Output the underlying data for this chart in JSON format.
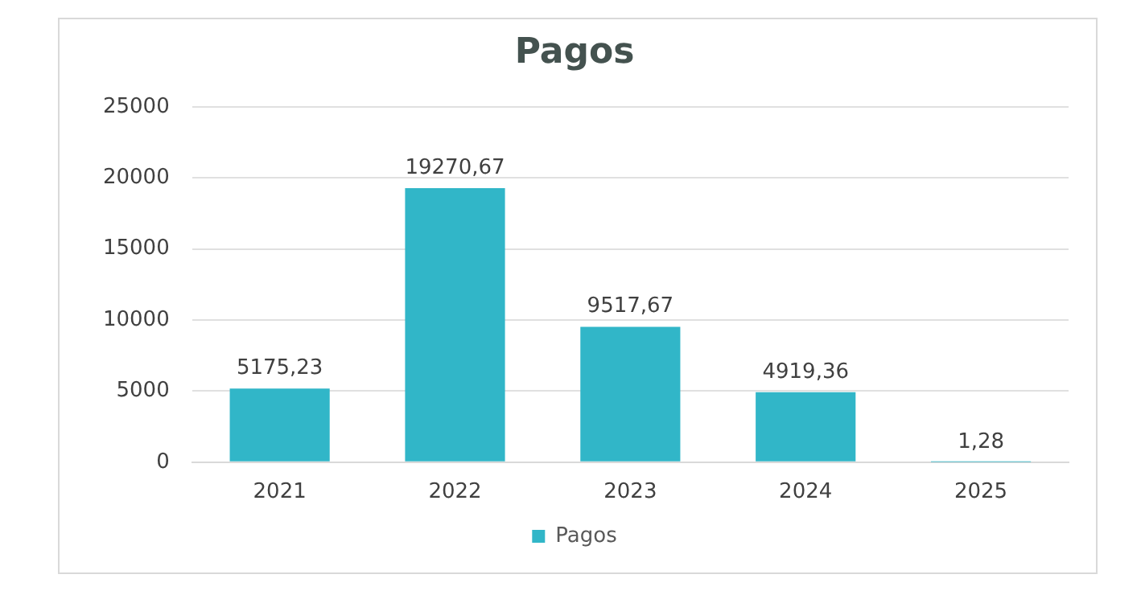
{
  "chart_data": {
    "type": "bar",
    "title": "Pagos",
    "categories": [
      "2021",
      "2022",
      "2023",
      "2024",
      "2025"
    ],
    "series": [
      {
        "name": "Pagos",
        "color": "#31b6c8",
        "values": [
          5175.23,
          19270.67,
          9517.67,
          4919.36,
          1.28
        ],
        "value_labels": [
          "5175,23",
          "19270,67",
          "9517,67",
          "4919,36",
          "1,28"
        ]
      }
    ],
    "ylim": [
      0,
      25000
    ],
    "yticks": [
      0,
      5000,
      10000,
      15000,
      20000,
      25000
    ],
    "grid": "y",
    "legend": "bottom"
  }
}
